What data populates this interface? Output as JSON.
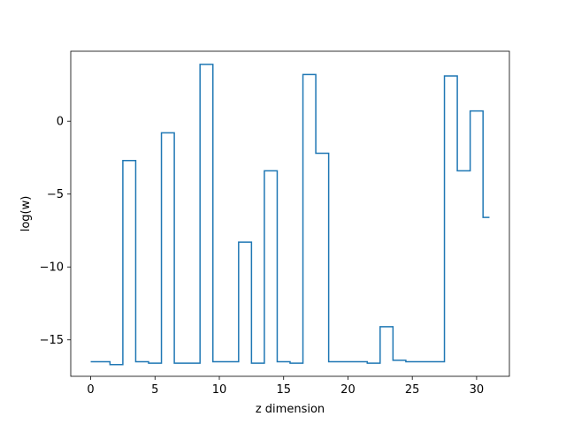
{
  "chart_data": {
    "type": "line",
    "drawstyle": "steps-mid",
    "xlabel": "z dimension",
    "ylabel": "log(w)",
    "xlim": [
      -1.55,
      32.55
    ],
    "ylim": [
      -17.5,
      4.8
    ],
    "xticks": [
      0,
      5,
      10,
      15,
      20,
      25,
      30
    ],
    "yticks": [
      -15,
      -10,
      -5,
      0
    ],
    "grid": false,
    "line_color": "#1f77b4",
    "series": [
      {
        "x": [
          0,
          1,
          2,
          3,
          4,
          5,
          6,
          7,
          8,
          9,
          10,
          11,
          12,
          13,
          14,
          15,
          16,
          17,
          18,
          19,
          20,
          21,
          22,
          23,
          24,
          25,
          26,
          27,
          28,
          29,
          30,
          31
        ],
        "values": [
          -16.5,
          -16.5,
          -16.7,
          -2.7,
          -16.5,
          -16.6,
          -0.8,
          -16.6,
          -16.6,
          3.9,
          -16.5,
          -16.5,
          -8.3,
          -16.6,
          -3.4,
          -16.5,
          -16.6,
          3.2,
          -2.2,
          -16.5,
          -16.5,
          -16.5,
          -16.6,
          -14.1,
          -16.4,
          -16.5,
          -16.5,
          -16.5,
          3.1,
          -3.4,
          0.7,
          -6.6
        ]
      }
    ]
  }
}
